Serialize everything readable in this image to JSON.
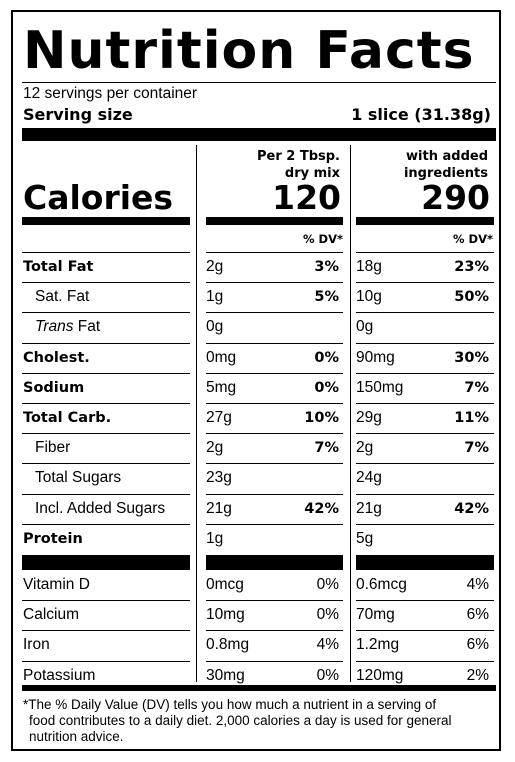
{
  "title": "Nutrition Facts",
  "servings_per_container": "12 servings per container",
  "serving_size_label": "Serving size",
  "serving_size_value": "1 slice (31.38g)",
  "columns": [
    {
      "header_line1": "Per 2 Tbsp.",
      "header_line2": "dry mix",
      "calories": "120",
      "dv_header": "% DV*"
    },
    {
      "header_line1": "with added",
      "header_line2": "ingredients",
      "calories": "290",
      "dv_header": "% DV*"
    }
  ],
  "calories_label": "Calories",
  "nutrients": [
    {
      "label": "Total Fat",
      "bold": true,
      "indent": false,
      "col1_amount": "2g",
      "col1_dv": "3%",
      "col2_amount": "18g",
      "col2_dv": "23%"
    },
    {
      "label": "Sat. Fat",
      "bold": false,
      "indent": true,
      "col1_amount": "1g",
      "col1_dv": "5%",
      "col2_amount": "10g",
      "col2_dv": "50%"
    },
    {
      "label": "Trans Fat",
      "italic_part": "Trans",
      "rest_part": " Fat",
      "bold": false,
      "indent": true,
      "col1_amount": "0g",
      "col1_dv": "",
      "col2_amount": "0g",
      "col2_dv": ""
    },
    {
      "label": "Cholest.",
      "bold": true,
      "indent": false,
      "col1_amount": "0mg",
      "col1_dv": "0%",
      "col2_amount": "90mg",
      "col2_dv": "30%"
    },
    {
      "label": "Sodium",
      "bold": true,
      "indent": false,
      "col1_amount": "5mg",
      "col1_dv": "0%",
      "col2_amount": "150mg",
      "col2_dv": "7%"
    },
    {
      "label": "Total Carb.",
      "bold": true,
      "indent": false,
      "col1_amount": "27g",
      "col1_dv": "10%",
      "col2_amount": "29g",
      "col2_dv": "11%"
    },
    {
      "label": "Fiber",
      "bold": false,
      "indent": true,
      "col1_amount": "2g",
      "col1_dv": "7%",
      "col2_amount": "2g",
      "col2_dv": "7%"
    },
    {
      "label": "Total Sugars",
      "bold": false,
      "indent": true,
      "col1_amount": "23g",
      "col1_dv": "",
      "col2_amount": "24g",
      "col2_dv": ""
    },
    {
      "label": "Incl. Added Sugars",
      "bold": false,
      "indent": true,
      "col1_amount": "21g",
      "col1_dv": "42%",
      "col2_amount": "21g",
      "col2_dv": "42%"
    },
    {
      "label": "Protein",
      "bold": true,
      "indent": false,
      "col1_amount": "1g",
      "col1_dv": "",
      "col2_amount": "5g",
      "col2_dv": ""
    }
  ],
  "vitamins": [
    {
      "label": "Vitamin D",
      "col1_amount": "0mcg",
      "col1_dv": "0%",
      "col2_amount": "0.6mcg",
      "col2_dv": "4%"
    },
    {
      "label": "Calcium",
      "col1_amount": "10mg",
      "col1_dv": "0%",
      "col2_amount": "70mg",
      "col2_dv": "6%"
    },
    {
      "label": "Iron",
      "col1_amount": "0.8mg",
      "col1_dv": "4%",
      "col2_amount": "1.2mg",
      "col2_dv": "6%"
    },
    {
      "label": "Potassium",
      "col1_amount": "30mg",
      "col1_dv": "0%",
      "col2_amount": "120mg",
      "col2_dv": "2%"
    }
  ],
  "footnote_lines": [
    "*The % Daily Value (DV) tells you how much a nutrient in a serving of",
    "food contributes to a daily diet. 2,000 calories a day is used for general",
    "nutrition advice."
  ]
}
